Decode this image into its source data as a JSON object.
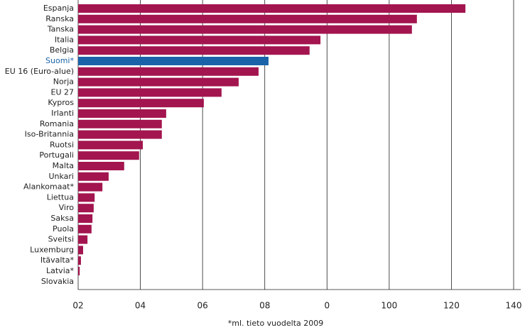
{
  "chart_data": {
    "type": "hbar",
    "categories": [
      "Espanja",
      "Ranska",
      "Tanska",
      "Italia",
      "Belgia",
      "Suomi*",
      "EU 16 (Euro-alue)",
      "Norja",
      "EU 27",
      "Kypros",
      "Irlanti",
      "Romania",
      "Iso-Britannia",
      "Ruotsi",
      "Portugali",
      "Malta",
      "Unkari",
      "Alankomaat*",
      "Liettua",
      "Viro",
      "Saksa",
      "Puola",
      "Sveitsi",
      "Luxemburg",
      "Itävalta*",
      "Latvia*",
      "Slovakia"
    ],
    "values": [
      124.5,
      108.9,
      107.3,
      77.9,
      74.4,
      61.2,
      58.0,
      51.6,
      46.1,
      40.4,
      28.3,
      26.9,
      26.9,
      20.8,
      19.6,
      14.8,
      9.8,
      7.8,
      5.3,
      5.0,
      4.6,
      4.3,
      3.0,
      1.6,
      0.9,
      0.5,
      0
    ],
    "colors": [
      "#a3154f",
      "#a3154f",
      "#a3154f",
      "#a3154f",
      "#a3154f",
      "#1a63a8",
      "#a3154f",
      "#a3154f",
      "#a3154f",
      "#a3154f",
      "#a3154f",
      "#a3154f",
      "#a3154f",
      "#a3154f",
      "#a3154f",
      "#a3154f",
      "#a3154f",
      "#a3154f",
      "#a3154f",
      "#a3154f",
      "#a3154f",
      "#a3154f",
      "#a3154f",
      "#a3154f",
      "#a3154f",
      "#a3154f",
      "#a3154f"
    ],
    "label_color": "#222222",
    "xlim": [
      0,
      140
    ],
    "xticks": [
      {
        "value": 0,
        "label": "02"
      },
      {
        "value": 20,
        "label": "04"
      },
      {
        "value": 40,
        "label": "06"
      },
      {
        "value": 60,
        "label": "08"
      },
      {
        "value": 80,
        "label": "0"
      },
      100,
      120,
      140
    ],
    "grid": true,
    "footnote": "*ml. tieto vuodelta 2009"
  }
}
